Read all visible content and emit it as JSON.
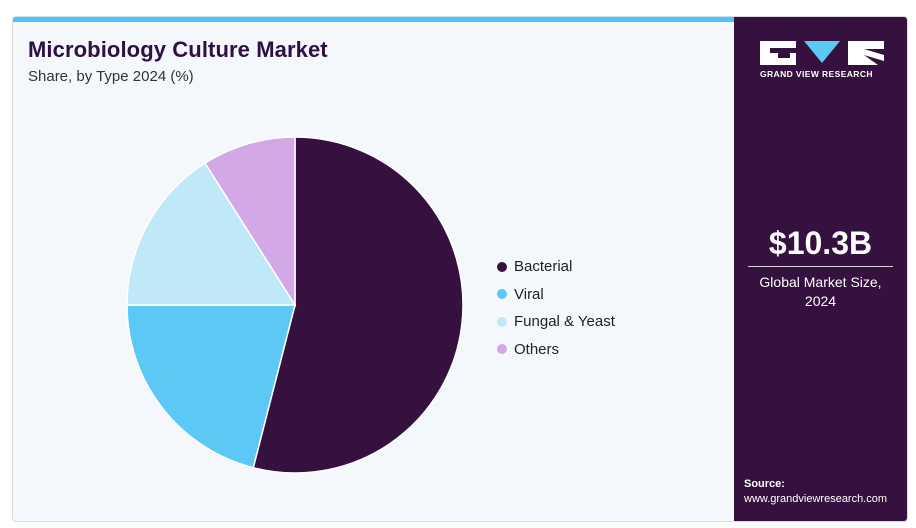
{
  "header": {
    "title": "Microbiology Culture Market",
    "subtitle": "Share, by Type 2024 (%)"
  },
  "chart_data": {
    "type": "pie",
    "title": "Microbiology Culture Market",
    "subtitle": "Share, by Type 2024 (%)",
    "legend_position": "right",
    "slices": [
      {
        "label": "Bacterial",
        "value": 54,
        "color": "#36103f"
      },
      {
        "label": "Viral",
        "value": 21,
        "color": "#5bc8f5"
      },
      {
        "label": "Fungal & Yeast",
        "value": 16,
        "color": "#bfe8f8"
      },
      {
        "label": "Others",
        "value": 9,
        "color": "#d2a8e6"
      }
    ]
  },
  "sidebar": {
    "brand": "GRAND VIEW RESEARCH",
    "market_value": "$10.3B",
    "market_caption_line1": "Global Market Size,",
    "market_caption_line2": "2024",
    "source_label": "Source:",
    "source_url": "www.grandviewresearch.com"
  },
  "colors": {
    "accent_strip": "#4fc3f7",
    "sidebar_bg": "#36103f",
    "title_color": "#2f1044"
  }
}
